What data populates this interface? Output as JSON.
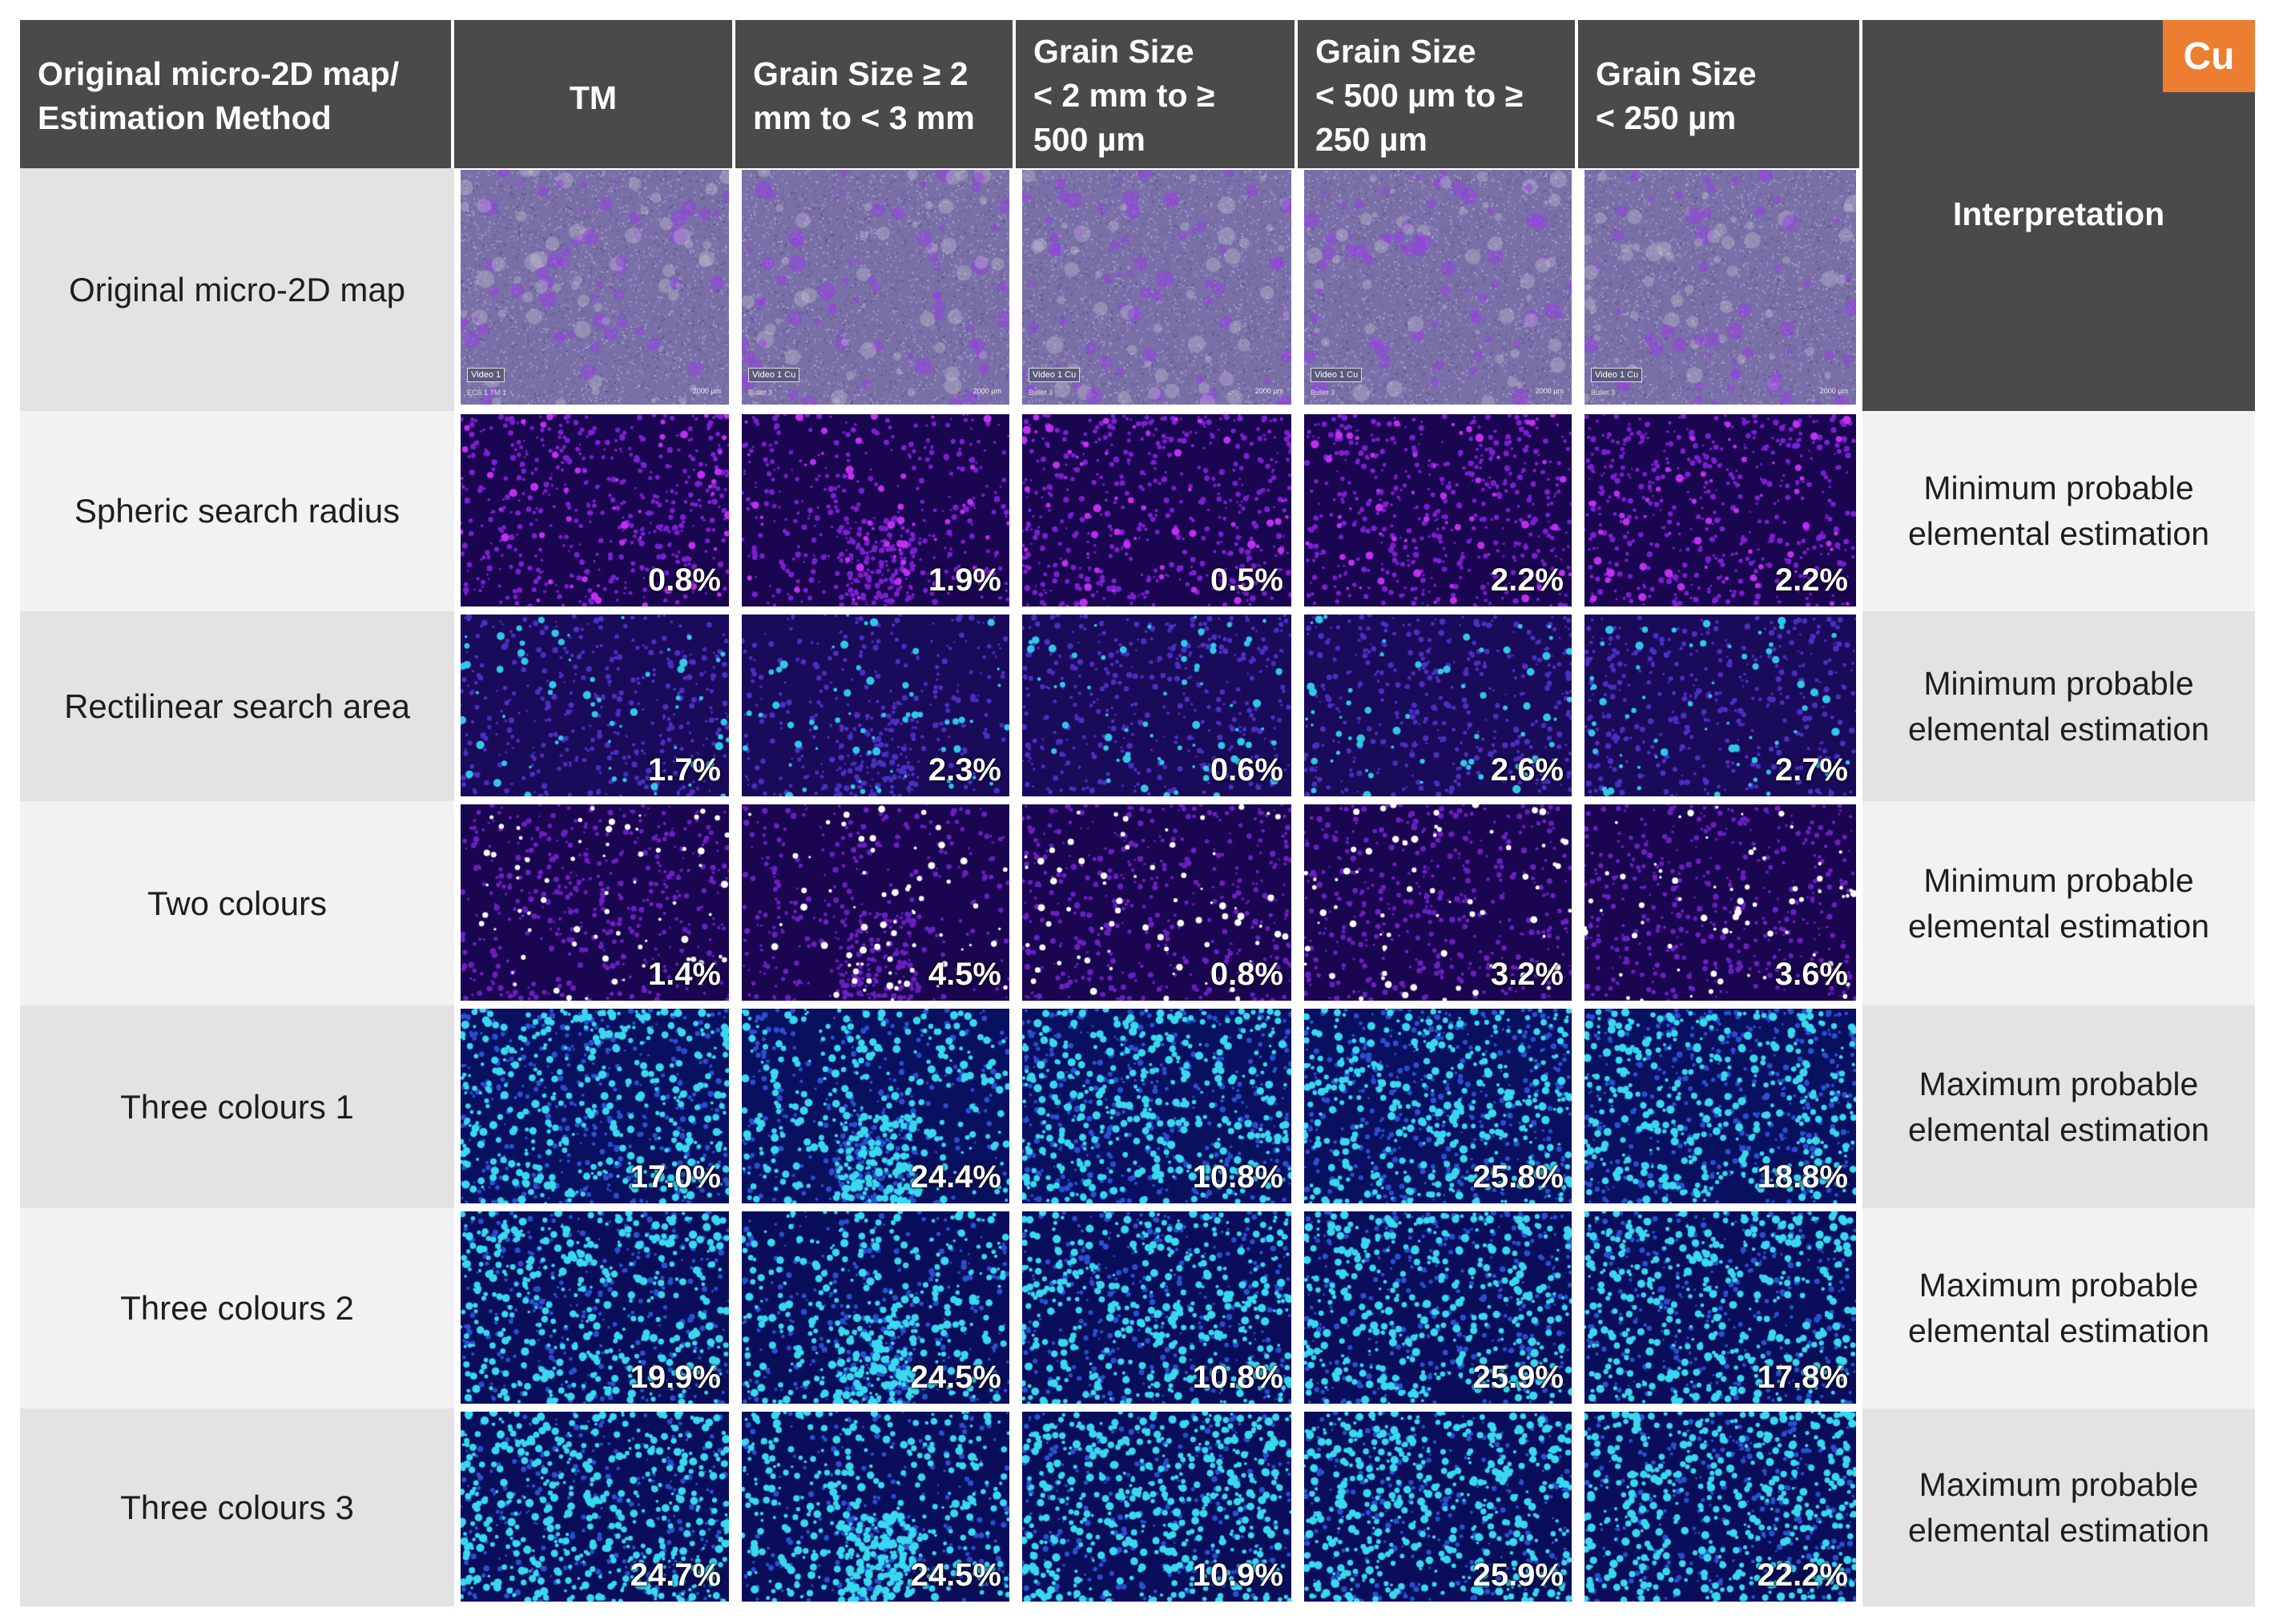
{
  "badge": "Cu",
  "header": {
    "corner": "Original micro-2D map/\nEstimation Method",
    "columns": [
      "TM",
      "Grain Size  ≥ 2\nmm to < 3 mm",
      "Grain Size\n< 2 mm to ≥\n500 µm",
      "Grain Size\n< 500 µm to ≥\n250 µm",
      "Grain Size\n< 250 µm"
    ],
    "interpretation": "Interpretation"
  },
  "original_row": {
    "label": "Original micro-2D map",
    "image_tags": [
      "Video 1",
      "Video 1  Cu",
      "Video 1  Cu",
      "Video 1  Cu",
      "Video 1  Cu"
    ],
    "image_subtags": [
      "ECS 1 TM 1",
      "Bullet 3",
      "Bullet 3",
      "Bullet 3",
      "Bullet 3"
    ],
    "scale_label": "2000 µm"
  },
  "rows": [
    {
      "label": "Spheric search radius",
      "values": [
        "0.8%",
        "1.9%",
        "0.5%",
        "2.2%",
        "2.2%"
      ],
      "interpretation": "Minimum probable\nelemental estimation",
      "style": "spheric"
    },
    {
      "label": "Rectilinear search area",
      "values": [
        "1.7%",
        "2.3%",
        "0.6%",
        "2.6%",
        "2.7%"
      ],
      "interpretation": "Minimum probable\nelemental estimation",
      "style": "rect"
    },
    {
      "label": "Two colours",
      "values": [
        "1.4%",
        "4.5%",
        "0.8%",
        "3.2%",
        "3.6%"
      ],
      "interpretation": "Minimum probable\nelemental estimation",
      "style": "two"
    },
    {
      "label": "Three colours 1",
      "values": [
        "17.0%",
        "24.4%",
        "10.8%",
        "25.8%",
        "18.8%"
      ],
      "interpretation": "Maximum probable\nelemental estimation",
      "style": "three1"
    },
    {
      "label": "Three colours 2",
      "values": [
        "19.9%",
        "24.5%",
        "10.8%",
        "25.9%",
        "17.8%"
      ],
      "interpretation": "Maximum probable\nelemental estimation",
      "style": "three2"
    },
    {
      "label": "Three colours 3",
      "values": [
        "24.7%",
        "24.5%",
        "10.9%",
        "25.9%",
        "22.2%"
      ],
      "interpretation": "Maximum probable\nelemental estimation",
      "style": "three3"
    }
  ],
  "colors": {
    "header_bg": "#4a4a4a",
    "row_bg_light": "#f2f2f2",
    "row_bg_dark": "#e3e3e3",
    "badge": "#ed7d31",
    "map_bg": "#2a0a6a",
    "map_magenta": "#d030ff",
    "map_cyan": "#30d8f0"
  }
}
